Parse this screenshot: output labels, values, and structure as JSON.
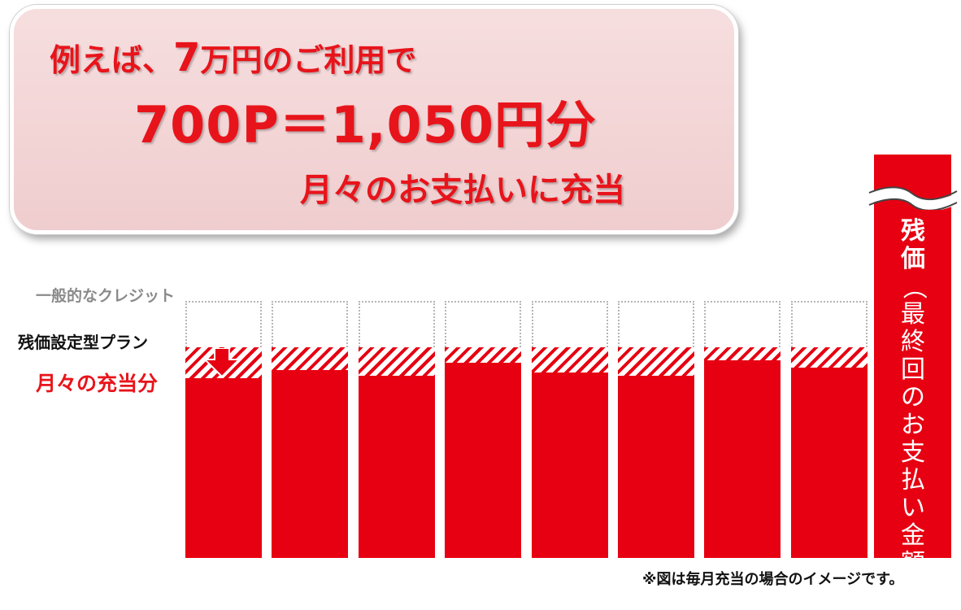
{
  "callout": {
    "line1_prefix": "例えば、",
    "line1_amount": "7",
    "line1_suffix": "万円のご利用で",
    "line2": "700P＝1,050円分",
    "line3": "月々のお支払いに充当"
  },
  "labels": {
    "general_credit": "一般的なクレジット",
    "residual_plan": "残価設定型プラン",
    "monthly_allocation": "月々の充当分"
  },
  "final_bar": {
    "title": "残価",
    "paren_open": "（",
    "detail": "最終回のお支払い金額",
    "paren_close": "）"
  },
  "note": "※図は毎月充当の場合のイメージです。",
  "colors": {
    "accent_red": "#e60012",
    "text_red": "#e8141b",
    "callout_pink": "#f3d5d6"
  },
  "chart_data": {
    "type": "bar",
    "description": "Monthly payment illustration: dotted outline = general credit level, hatched = monthly allocation, solid = residual plan payment",
    "months": 8,
    "general_credit_level": 1.0,
    "residual_plan_level": 0.82,
    "solid_levels": [
      0.7,
      0.73,
      0.71,
      0.76,
      0.72,
      0.71,
      0.77,
      0.74
    ]
  }
}
